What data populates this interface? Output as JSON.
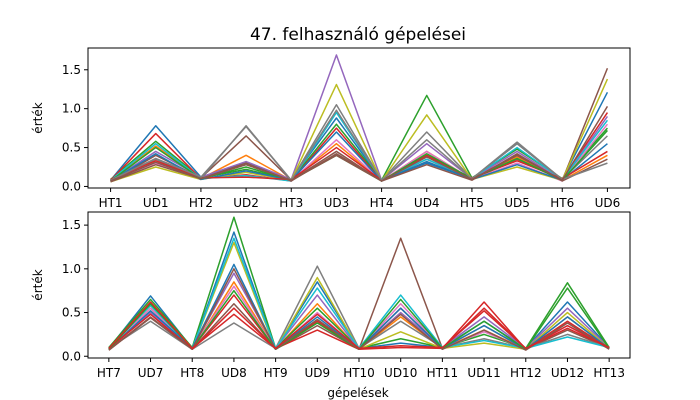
{
  "chart_data": [
    {
      "type": "line",
      "title": "47. felhasználó gépelései",
      "ylabel": "érték",
      "xlabel": "",
      "categories": [
        "HT1",
        "UD1",
        "HT2",
        "UD2",
        "HT3",
        "UD3",
        "HT4",
        "UD4",
        "HT5",
        "UD5",
        "HT6",
        "UD6"
      ],
      "ylim": [
        -0.02,
        1.78
      ],
      "yticks": [
        0.0,
        0.5,
        1.0,
        1.5
      ],
      "ytick_labels": [
        "0.0",
        "0.5",
        "1.0",
        "1.5"
      ],
      "grid": false,
      "series": [
        {
          "color": "#1f77b4",
          "values": [
            0.08,
            0.78,
            0.12,
            0.3,
            0.09,
            0.88,
            0.08,
            0.3,
            0.1,
            0.55,
            0.09,
            1.21
          ]
        },
        {
          "color": "#ff7f0e",
          "values": [
            0.07,
            0.52,
            0.1,
            0.4,
            0.08,
            0.55,
            0.07,
            0.45,
            0.09,
            0.38,
            0.08,
            0.4
          ]
        },
        {
          "color": "#2ca02c",
          "values": [
            0.09,
            0.58,
            0.11,
            0.22,
            0.08,
            0.8,
            0.08,
            1.17,
            0.11,
            0.48,
            0.1,
            0.75
          ]
        },
        {
          "color": "#d62728",
          "values": [
            0.08,
            0.68,
            0.1,
            0.15,
            0.07,
            0.75,
            0.07,
            0.4,
            0.1,
            0.4,
            0.09,
            0.95
          ]
        },
        {
          "color": "#9467bd",
          "values": [
            0.07,
            0.45,
            0.12,
            0.32,
            0.09,
            1.69,
            0.08,
            0.55,
            0.1,
            0.45,
            0.08,
            0.9
          ]
        },
        {
          "color": "#8c564b",
          "values": [
            0.06,
            0.4,
            0.11,
            0.65,
            0.08,
            0.45,
            0.07,
            0.35,
            0.09,
            0.35,
            0.08,
            1.52
          ]
        },
        {
          "color": "#e377c2",
          "values": [
            0.08,
            0.3,
            0.09,
            0.2,
            0.07,
            0.6,
            0.07,
            0.45,
            0.09,
            0.3,
            0.07,
            0.8
          ]
        },
        {
          "color": "#7f7f7f",
          "values": [
            0.07,
            0.35,
            0.1,
            0.78,
            0.08,
            1.05,
            0.08,
            0.7,
            0.1,
            0.57,
            0.09,
            0.65
          ]
        },
        {
          "color": "#bcbd22",
          "values": [
            0.06,
            0.25,
            0.09,
            0.18,
            0.08,
            1.31,
            0.07,
            0.92,
            0.09,
            0.25,
            0.08,
            1.38
          ]
        },
        {
          "color": "#17becf",
          "values": [
            0.08,
            0.55,
            0.1,
            0.14,
            0.07,
            0.95,
            0.08,
            0.35,
            0.1,
            0.5,
            0.09,
            0.85
          ]
        },
        {
          "color": "#1f77b4",
          "values": [
            0.07,
            0.42,
            0.09,
            0.2,
            0.08,
            0.7,
            0.07,
            0.32,
            0.09,
            0.28,
            0.08,
            0.55
          ]
        },
        {
          "color": "#d62728",
          "values": [
            0.09,
            0.33,
            0.11,
            0.12,
            0.09,
            0.5,
            0.08,
            0.38,
            0.11,
            0.33,
            0.1,
            0.45
          ]
        },
        {
          "color": "#2ca02c",
          "values": [
            0.07,
            0.5,
            0.1,
            0.25,
            0.08,
            0.4,
            0.07,
            0.42,
            0.1,
            0.36,
            0.08,
            0.72
          ]
        },
        {
          "color": "#8c564b",
          "values": [
            0.06,
            0.28,
            0.1,
            0.3,
            0.07,
            0.42,
            0.07,
            0.28,
            0.08,
            0.42,
            0.07,
            0.35
          ]
        },
        {
          "color": "#7f7f7f",
          "values": [
            0.08,
            0.36,
            0.12,
            0.77,
            0.08,
            0.98,
            0.08,
            0.6,
            0.1,
            0.55,
            0.09,
            0.3
          ]
        },
        {
          "color": "#8c564b",
          "values": [
            0.07,
            0.31,
            0.1,
            0.28,
            0.08,
            0.4,
            0.07,
            0.38,
            0.09,
            0.4,
            0.08,
            1.03
          ]
        }
      ]
    },
    {
      "type": "line",
      "title": "",
      "ylabel": "érték",
      "xlabel": "gépelések",
      "categories": [
        "HT7",
        "UD7",
        "HT8",
        "UD8",
        "HT9",
        "UD9",
        "HT10",
        "UD10",
        "HT11",
        "UD11",
        "HT12",
        "UD12",
        "HT13"
      ],
      "ylim": [
        -0.02,
        1.65
      ],
      "yticks": [
        0.0,
        0.5,
        1.0,
        1.5
      ],
      "ytick_labels": [
        "0.0",
        "0.5",
        "1.0",
        "1.5"
      ],
      "grid": false,
      "series": [
        {
          "color": "#1f77b4",
          "values": [
            0.09,
            0.69,
            0.09,
            1.42,
            0.09,
            0.85,
            0.09,
            0.15,
            0.1,
            0.4,
            0.09,
            0.62,
            0.1
          ]
        },
        {
          "color": "#ff7f0e",
          "values": [
            0.08,
            0.55,
            0.08,
            0.85,
            0.08,
            0.6,
            0.08,
            0.45,
            0.09,
            0.3,
            0.08,
            0.45,
            0.09
          ]
        },
        {
          "color": "#2ca02c",
          "values": [
            0.1,
            0.65,
            0.1,
            1.59,
            0.09,
            0.55,
            0.09,
            0.2,
            0.1,
            0.25,
            0.09,
            0.84,
            0.1
          ]
        },
        {
          "color": "#d62728",
          "values": [
            0.08,
            0.6,
            0.09,
            0.7,
            0.08,
            0.4,
            0.08,
            0.55,
            0.09,
            0.62,
            0.08,
            0.4,
            0.09
          ]
        },
        {
          "color": "#9467bd",
          "values": [
            0.09,
            0.5,
            0.09,
            0.95,
            0.09,
            0.7,
            0.08,
            0.5,
            0.1,
            0.45,
            0.09,
            0.55,
            0.1
          ]
        },
        {
          "color": "#8c564b",
          "values": [
            0.07,
            0.45,
            0.08,
            0.6,
            0.08,
            0.35,
            0.08,
            1.35,
            0.09,
            0.35,
            0.08,
            0.3,
            0.09
          ]
        },
        {
          "color": "#e377c2",
          "values": [
            0.08,
            0.55,
            0.09,
            0.8,
            0.08,
            0.5,
            0.08,
            0.6,
            0.09,
            0.28,
            0.08,
            0.35,
            0.09
          ]
        },
        {
          "color": "#7f7f7f",
          "values": [
            0.09,
            0.4,
            0.08,
            0.38,
            0.09,
            1.03,
            0.09,
            0.4,
            0.1,
            0.2,
            0.09,
            0.25,
            0.1
          ]
        },
        {
          "color": "#bcbd22",
          "values": [
            0.08,
            0.62,
            0.09,
            1.3,
            0.08,
            0.9,
            0.08,
            0.28,
            0.09,
            0.15,
            0.08,
            0.5,
            0.09
          ]
        },
        {
          "color": "#17becf",
          "values": [
            0.09,
            0.58,
            0.09,
            1.35,
            0.09,
            0.78,
            0.09,
            0.7,
            0.1,
            0.18,
            0.09,
            0.22,
            0.1
          ]
        },
        {
          "color": "#1f77b4",
          "values": [
            0.08,
            0.52,
            0.09,
            1.05,
            0.08,
            0.45,
            0.08,
            0.55,
            0.09,
            0.35,
            0.08,
            0.45,
            0.09
          ]
        },
        {
          "color": "#d62728",
          "values": [
            0.09,
            0.48,
            0.08,
            0.55,
            0.09,
            0.3,
            0.08,
            0.1,
            0.09,
            0.55,
            0.09,
            0.35,
            0.1
          ]
        },
        {
          "color": "#2ca02c",
          "values": [
            0.08,
            0.6,
            0.09,
            0.75,
            0.08,
            0.38,
            0.08,
            0.65,
            0.09,
            0.4,
            0.08,
            0.78,
            0.09
          ]
        },
        {
          "color": "#8c564b",
          "values": [
            0.07,
            0.44,
            0.08,
            1.0,
            0.08,
            0.42,
            0.08,
            0.48,
            0.08,
            0.3,
            0.07,
            0.38,
            0.08
          ]
        },
        {
          "color": "#d62728",
          "values": [
            0.09,
            0.62,
            0.09,
            0.48,
            0.09,
            0.48,
            0.09,
            0.12,
            0.1,
            0.52,
            0.09,
            0.32,
            0.1
          ]
        }
      ]
    }
  ]
}
